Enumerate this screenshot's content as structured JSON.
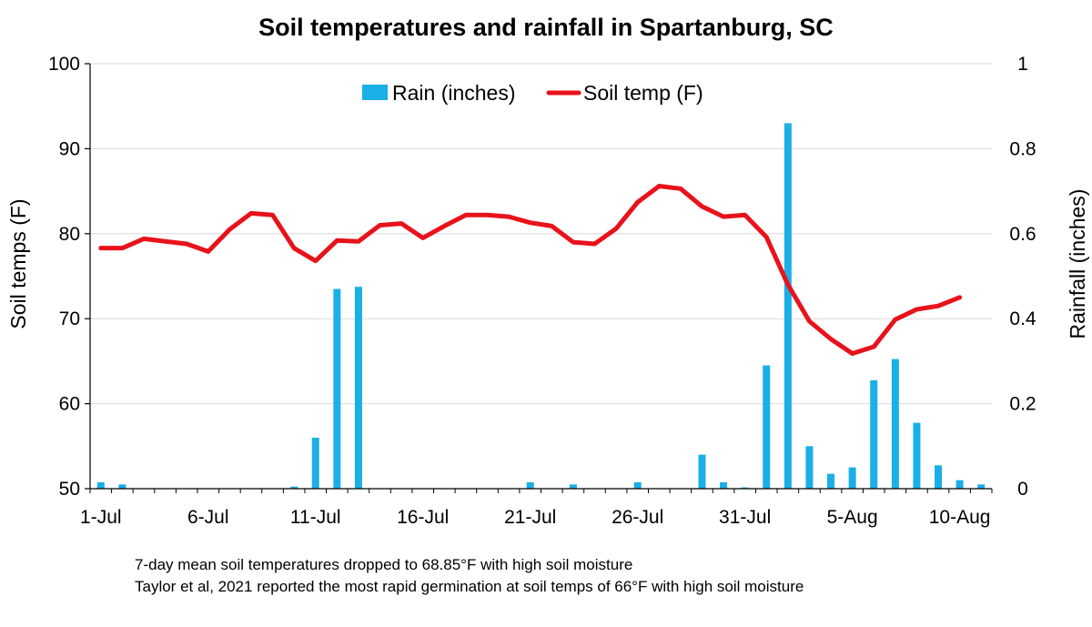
{
  "chart_data": {
    "type": "bar+line",
    "title": "Soil temperatures and rainfall in Spartanburg, SC",
    "ylabel_left": "Soil temps (F)",
    "ylabel_right": "Rainfall (inches)",
    "ylim_left": [
      50,
      100
    ],
    "ylim_right": [
      0,
      1
    ],
    "yticks_left": [
      "50",
      "60",
      "70",
      "80",
      "90",
      "100"
    ],
    "yticks_right": [
      "0",
      "0.2",
      "0.4",
      "0.6",
      "0.8",
      "1"
    ],
    "xticks": [
      "1-Jul",
      "6-Jul",
      "11-Jul",
      "16-Jul",
      "21-Jul",
      "26-Jul",
      "31-Jul",
      "5-Aug",
      "10-Aug"
    ],
    "xtick_day_index": [
      0,
      5,
      10,
      15,
      20,
      25,
      30,
      35,
      40
    ],
    "legend": {
      "bar_label": "Rain (inches)",
      "line_label": "Soil temp (F)",
      "position": "top-center"
    },
    "series": [
      {
        "name": "Rain (inches)",
        "kind": "bar",
        "axis": "right",
        "color": "#1aafe6",
        "values": [
          0.015,
          0.01,
          0,
          0,
          0,
          0,
          0,
          0,
          0,
          0.005,
          0.12,
          0.47,
          0.475,
          0,
          0,
          0,
          0,
          0,
          0,
          0,
          0.015,
          0,
          0.01,
          0,
          0,
          0.015,
          0,
          0,
          0.08,
          0.015,
          0.003,
          0.29,
          0.86,
          0.1,
          0.035,
          0.05,
          0.255,
          0.305,
          0.155,
          0.055,
          0.02,
          0.01
        ]
      },
      {
        "name": "Soil temp (F)",
        "kind": "line",
        "axis": "left",
        "color": "#e8121b",
        "values": [
          78.3,
          78.3,
          79.4,
          79.1,
          78.8,
          77.9,
          80.5,
          82.4,
          82.2,
          78.3,
          76.8,
          79.2,
          79.1,
          81.0,
          81.2,
          79.5,
          80.9,
          82.2,
          82.2,
          82.0,
          81.3,
          80.9,
          79.0,
          78.8,
          80.6,
          83.7,
          85.6,
          85.3,
          83.2,
          82.0,
          82.2,
          79.6,
          74.0,
          69.7,
          67.6,
          65.9,
          66.7,
          69.9,
          71.1,
          71.5,
          72.5
        ]
      }
    ]
  },
  "notes": {
    "line1": "7-day mean soil temperatures dropped to 68.85°F with high soil moisture",
    "line2": "Taylor et al, 2021 reported the most rapid germination at soil temps of 66°F with high soil moisture"
  }
}
